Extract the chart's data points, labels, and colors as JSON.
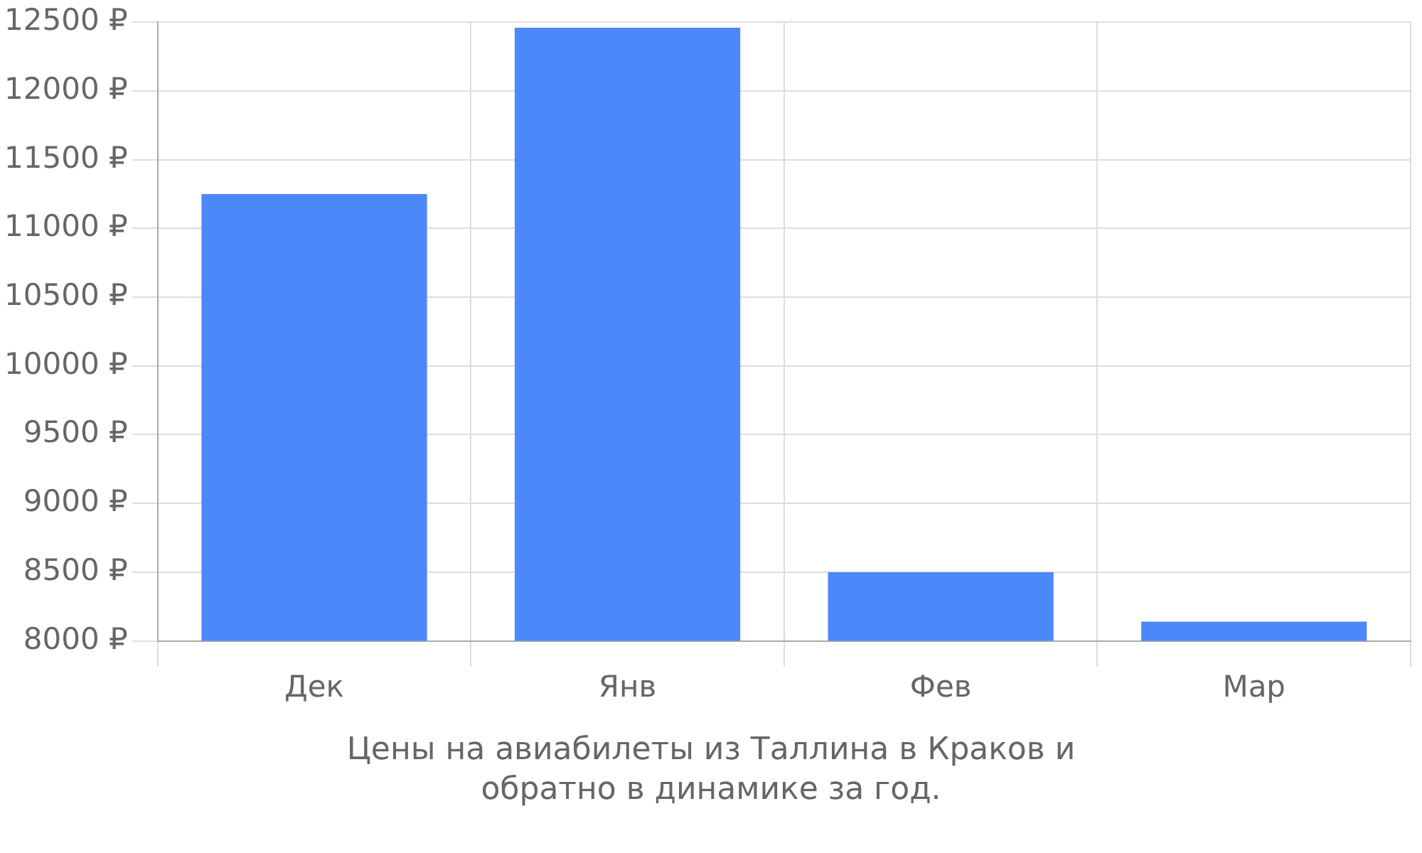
{
  "chart_data": {
    "type": "bar",
    "categories": [
      "Дек",
      "Янв",
      "Фев",
      "Мар"
    ],
    "values": [
      11250,
      12460,
      8500,
      8140
    ],
    "color": "#4d88fa",
    "ylim": [
      8000,
      12500
    ],
    "yticks": [
      {
        "value": 8000,
        "label": "8000 ₽"
      },
      {
        "value": 8500,
        "label": "8500 ₽"
      },
      {
        "value": 9000,
        "label": "9000 ₽"
      },
      {
        "value": 9500,
        "label": "9500 ₽"
      },
      {
        "value": 10000,
        "label": "10000 ₽"
      },
      {
        "value": 10500,
        "label": "10500 ₽"
      },
      {
        "value": 11000,
        "label": "11000 ₽"
      },
      {
        "value": 11500,
        "label": "11500 ₽"
      },
      {
        "value": 12000,
        "label": "12000 ₽"
      },
      {
        "value": 12500,
        "label": "12500 ₽"
      }
    ],
    "grid": true,
    "annotations": [
      "Цены на авиабилеты из Таллина в Краков и обратно в динамике за год."
    ]
  }
}
